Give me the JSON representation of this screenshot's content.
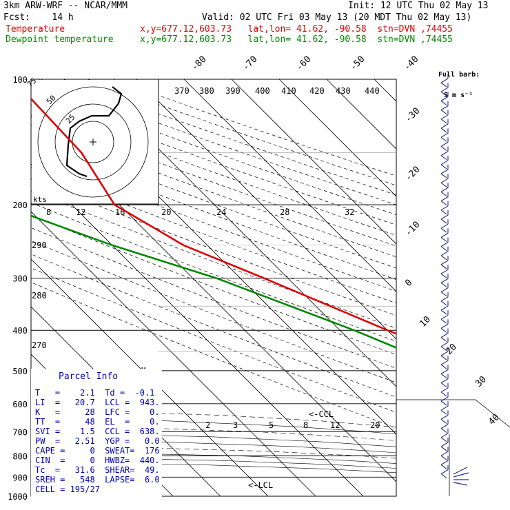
{
  "header": {
    "line1_left": "3km ARW-WRF -- NCAR/MMM",
    "line1_right": "Init: 12 UTC Thu 02 May 13",
    "fcst_left": "Fcst:    14 h",
    "valid": "Valid: 02 UTC Fri 03 May 13 (20 MDT Thu 02 May 13)",
    "temp_label": "Temperature",
    "temp_info": "x,y=677.12,603.73   lat,lon= 41.62, -90.58  stn=DVN ,74455",
    "dew_label": "Dewpoint temperature",
    "dew_info": "x,y=677.12,603.73   lat,lon= 41.62, -90.58  stn=DVN ,74455"
  },
  "barb_legend": {
    "line1": "Full barb:",
    "line2": "5 m s⁻¹"
  },
  "parcel_info": {
    "title": "Parcel Info",
    "rows": [
      "T   =    2.1  Td =  -0.1",
      "LI  =   20.7  LCL =  943.",
      "K   =     28  LFC =    0.",
      "TT  =     48  EL  =    0.",
      "SVI =    1.5  CCL =  638.",
      "PW  =   2.51  YGP =   0.0",
      "CAPE =     0  SWEAT=  176",
      "CIN  =     0  HWBZ=  440.",
      "Tc  =   31.6  SHEAR=  49.",
      "SREH =   548  LAPSE=  6.0",
      "CELL = 195/27"
    ]
  },
  "chart_data": {
    "type": "line",
    "pressure_levels": [
      100,
      200,
      300,
      400,
      500,
      600,
      700,
      800,
      900,
      1000
    ],
    "isotherm_labels": [
      "-80",
      "-70",
      "-60",
      "-50",
      "-40",
      "-30",
      "-20",
      "-10",
      "0",
      "10",
      "20",
      "30",
      "40"
    ],
    "theta_labels": [
      "370",
      "380",
      "390",
      "400",
      "410",
      "420",
      "430",
      "440"
    ],
    "theta_labels_low": [
      "290",
      "280",
      "270"
    ],
    "mixing_ratio_labels": [
      "2",
      "3",
      "5",
      "8",
      "12",
      "20"
    ],
    "hodograph_labels": [
      "kts",
      "8",
      "12",
      "16",
      "20",
      "24",
      "28",
      "32"
    ],
    "hodograph_rings": [
      "25",
      "50",
      "75"
    ],
    "annotations": [
      "<-CCL",
      "<-LCL",
      "M"
    ],
    "series": [
      {
        "name": "Temperature",
        "color": "#e00000",
        "points": [
          [
            100,
            -56
          ],
          [
            150,
            -57
          ],
          [
            200,
            -61
          ],
          [
            250,
            -55
          ],
          [
            300,
            -45
          ],
          [
            400,
            -30
          ],
          [
            500,
            -17
          ],
          [
            600,
            -7
          ],
          [
            700,
            0
          ],
          [
            800,
            5
          ],
          [
            900,
            5
          ],
          [
            950,
            3
          ],
          [
            980,
            2.5
          ]
        ]
      },
      {
        "name": "Dewpoint temperature",
        "color": "#008800",
        "points": [
          [
            100,
            -88
          ],
          [
            150,
            -88
          ],
          [
            200,
            -85
          ],
          [
            250,
            -70
          ],
          [
            300,
            -55
          ],
          [
            400,
            -37
          ],
          [
            500,
            -25
          ],
          [
            600,
            -16
          ],
          [
            700,
            -9
          ],
          [
            800,
            3
          ],
          [
            850,
            1
          ],
          [
            900,
            -5
          ],
          [
            950,
            -10
          ],
          [
            980,
            -11
          ]
        ]
      }
    ]
  }
}
